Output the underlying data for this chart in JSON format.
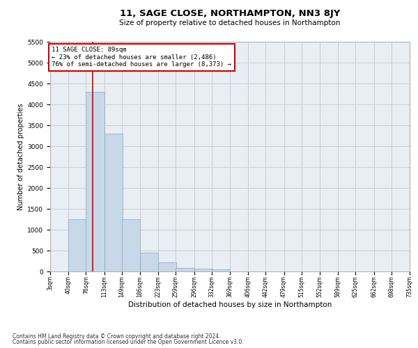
{
  "title": "11, SAGE CLOSE, NORTHAMPTON, NN3 8JY",
  "subtitle": "Size of property relative to detached houses in Northampton",
  "xlabel": "Distribution of detached houses by size in Northampton",
  "ylabel": "Number of detached properties",
  "footer_line1": "Contains HM Land Registry data © Crown copyright and database right 2024.",
  "footer_line2": "Contains public sector information licensed under the Open Government Licence v3.0.",
  "bar_color": "#c8d8e8",
  "bar_edge_color": "#7aaac8",
  "grid_color": "#cccccc",
  "bg_color": "#e8eef4",
  "annotation_text": "11 SAGE CLOSE: 89sqm\n← 23% of detached houses are smaller (2,486)\n76% of semi-detached houses are larger (8,373) →",
  "annotation_box_color": "#ffffff",
  "annotation_border_color": "#cc0000",
  "vline_color": "#cc0000",
  "vline_x": 89,
  "bins_left": [
    3,
    40,
    76,
    113,
    149,
    186,
    223,
    259,
    296,
    332,
    369,
    406,
    442,
    479,
    515,
    552,
    589,
    625,
    662,
    698
  ],
  "bin_width": 37,
  "bar_heights": [
    0,
    1250,
    4300,
    3300,
    1250,
    450,
    210,
    90,
    60,
    50,
    0,
    0,
    0,
    0,
    0,
    0,
    0,
    0,
    0,
    0
  ],
  "ylim": [
    0,
    5500
  ],
  "yticks": [
    0,
    500,
    1000,
    1500,
    2000,
    2500,
    3000,
    3500,
    4000,
    4500,
    5000,
    5500
  ],
  "xtick_labels": [
    "3sqm",
    "40sqm",
    "76sqm",
    "113sqm",
    "149sqm",
    "186sqm",
    "223sqm",
    "259sqm",
    "296sqm",
    "332sqm",
    "369sqm",
    "406sqm",
    "442sqm",
    "479sqm",
    "515sqm",
    "552sqm",
    "589sqm",
    "625sqm",
    "662sqm",
    "698sqm",
    "735sqm"
  ]
}
